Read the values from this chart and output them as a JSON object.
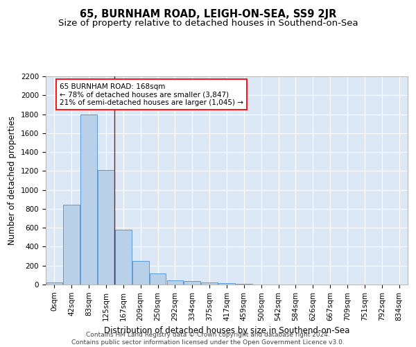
{
  "title": "65, BURNHAM ROAD, LEIGH-ON-SEA, SS9 2JR",
  "subtitle": "Size of property relative to detached houses in Southend-on-Sea",
  "xlabel": "Distribution of detached houses by size in Southend-on-Sea",
  "ylabel": "Number of detached properties",
  "bar_labels": [
    "0sqm",
    "42sqm",
    "83sqm",
    "125sqm",
    "167sqm",
    "209sqm",
    "250sqm",
    "292sqm",
    "334sqm",
    "375sqm",
    "417sqm",
    "459sqm",
    "500sqm",
    "542sqm",
    "584sqm",
    "626sqm",
    "667sqm",
    "709sqm",
    "751sqm",
    "792sqm",
    "834sqm"
  ],
  "bar_values": [
    25,
    840,
    1800,
    1210,
    580,
    250,
    115,
    45,
    35,
    25,
    18,
    10,
    0,
    0,
    0,
    0,
    0,
    0,
    0,
    0,
    0
  ],
  "bar_color": "#b8d0e8",
  "bar_edge_color": "#5b9bd5",
  "background_color": "#dce8f5",
  "annotation_line1": "65 BURNHAM ROAD: 168sqm",
  "annotation_line2": "← 78% of detached houses are smaller (3,847)",
  "annotation_line3": "21% of semi-detached houses are larger (1,045) →",
  "vline_color": "#8b1a1a",
  "ylim": [
    0,
    2200
  ],
  "yticks": [
    0,
    200,
    400,
    600,
    800,
    1000,
    1200,
    1400,
    1600,
    1800,
    2000,
    2200
  ],
  "footer_line1": "Contains HM Land Registry data © Crown copyright and database right 2024.",
  "footer_line2": "Contains public sector information licensed under the Open Government Licence v3.0.",
  "title_fontsize": 10.5,
  "subtitle_fontsize": 9.5,
  "axis_label_fontsize": 8.5,
  "tick_fontsize": 7.5,
  "annotation_fontsize": 7.5,
  "footer_fontsize": 6.5
}
